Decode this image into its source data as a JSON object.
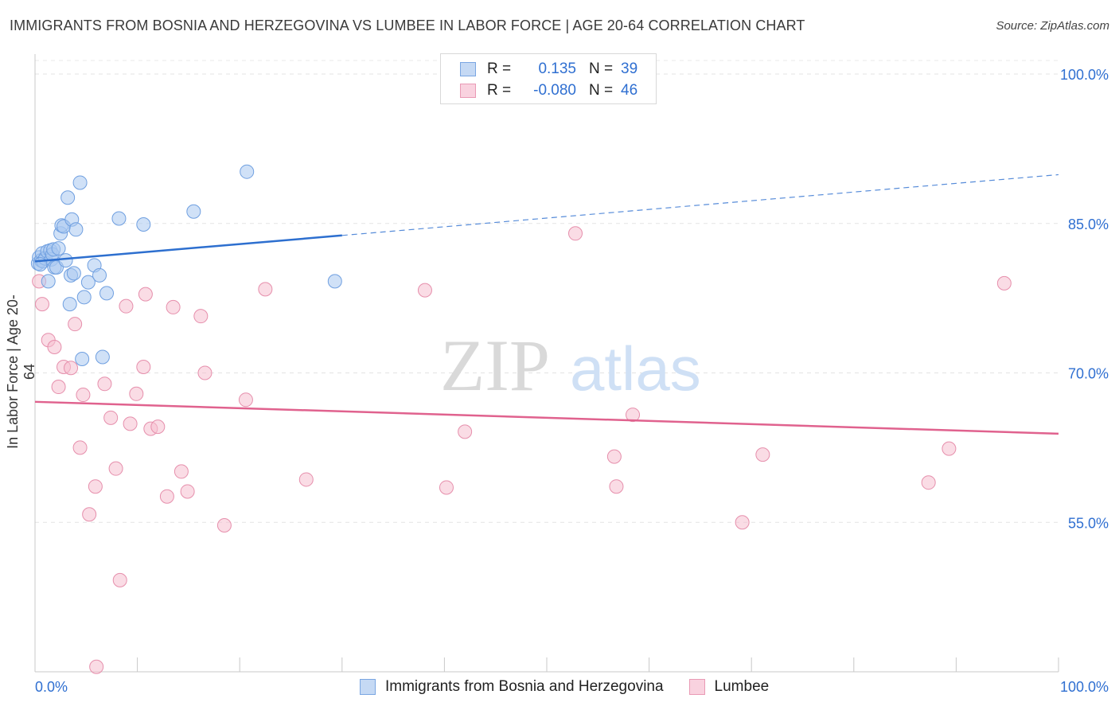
{
  "header": {
    "title": "IMMIGRANTS FROM BOSNIA AND HERZEGOVINA VS LUMBEE IN LABOR FORCE | AGE 20-64 CORRELATION CHART",
    "source": "Source: ZipAtlas.com"
  },
  "legend": {
    "series1": {
      "r_label": "R =",
      "r_value": "0.135",
      "n_label": "N =",
      "n_value": "39"
    },
    "series2": {
      "r_label": "R =",
      "r_value": "-0.080",
      "n_label": "N =",
      "n_value": "46"
    }
  },
  "bottom_legend": {
    "series1": "Immigrants from Bosnia and Herzegovina",
    "series2": "Lumbee"
  },
  "watermark": {
    "zip": "ZIP",
    "atlas": "atlas"
  },
  "colors": {
    "blue_fill": "#a9c8f0",
    "blue_stroke": "#6f9fe0",
    "blue_line": "#2d6fcf",
    "pink_fill": "#f6bfd0",
    "pink_stroke": "#e68fac",
    "pink_line": "#e0628e",
    "tick_text": "#2f6fd1"
  },
  "chart_data": {
    "type": "scatter",
    "title": "IMMIGRANTS FROM BOSNIA AND HERZEGOVINA VS LUMBEE IN LABOR FORCE | AGE 20-64 CORRELATION CHART",
    "xlabel": "",
    "ylabel": "In Labor Force | Age 20-64",
    "xlim": [
      0,
      100
    ],
    "ylim": [
      40,
      102
    ],
    "x_tick_labels": [
      "0.0%",
      "100.0%"
    ],
    "y_ticks": [
      55,
      70,
      85,
      100
    ],
    "y_tick_labels": [
      "55.0%",
      "70.0%",
      "85.0%",
      "100.0%"
    ],
    "grid": true,
    "legend_position": "top-center",
    "series": [
      {
        "name": "Immigrants from Bosnia and Herzegovina",
        "r": 0.135,
        "n": 39,
        "trend": {
          "x0": 0,
          "y0": 81.2,
          "x1": 30,
          "y1": 83.8,
          "dashed_to_x": 100,
          "dashed_to_y": 89.9
        },
        "points": [
          [
            0.3,
            81.0
          ],
          [
            0.4,
            81.6
          ],
          [
            0.6,
            81.3
          ],
          [
            0.7,
            82.0
          ],
          [
            0.8,
            81.2
          ],
          [
            1.0,
            81.5
          ],
          [
            1.2,
            82.2
          ],
          [
            1.3,
            79.2
          ],
          [
            1.5,
            82.3
          ],
          [
            1.6,
            81.4
          ],
          [
            1.7,
            81.9
          ],
          [
            1.8,
            82.4
          ],
          [
            1.9,
            80.6
          ],
          [
            2.1,
            80.6
          ],
          [
            2.3,
            82.5
          ],
          [
            2.5,
            84.0
          ],
          [
            2.6,
            84.8
          ],
          [
            2.8,
            84.7
          ],
          [
            3.0,
            81.3
          ],
          [
            3.2,
            87.6
          ],
          [
            3.4,
            76.9
          ],
          [
            3.5,
            79.8
          ],
          [
            3.6,
            85.4
          ],
          [
            3.8,
            80.0
          ],
          [
            4.0,
            84.4
          ],
          [
            4.4,
            89.1
          ],
          [
            4.6,
            71.4
          ],
          [
            4.8,
            77.6
          ],
          [
            5.2,
            79.1
          ],
          [
            5.8,
            80.8
          ],
          [
            6.3,
            79.8
          ],
          [
            6.6,
            71.6
          ],
          [
            7.0,
            78.0
          ],
          [
            8.2,
            85.5
          ],
          [
            10.6,
            84.9
          ],
          [
            15.5,
            86.2
          ],
          [
            20.7,
            90.2
          ],
          [
            29.3,
            79.2
          ],
          [
            0.5,
            80.9
          ]
        ]
      },
      {
        "name": "Lumbee",
        "r": -0.08,
        "n": 46,
        "trend": {
          "x0": 0,
          "y0": 67.1,
          "x1": 100,
          "y1": 63.9
        },
        "points": [
          [
            0.4,
            79.2
          ],
          [
            0.7,
            76.9
          ],
          [
            1.3,
            73.3
          ],
          [
            1.9,
            72.6
          ],
          [
            2.3,
            68.6
          ],
          [
            2.8,
            70.6
          ],
          [
            3.5,
            70.5
          ],
          [
            3.9,
            74.9
          ],
          [
            4.4,
            62.5
          ],
          [
            4.7,
            67.8
          ],
          [
            5.3,
            55.8
          ],
          [
            5.9,
            58.6
          ],
          [
            6.0,
            40.5
          ],
          [
            6.8,
            68.9
          ],
          [
            7.4,
            65.5
          ],
          [
            7.9,
            60.4
          ],
          [
            8.3,
            49.2
          ],
          [
            8.9,
            76.7
          ],
          [
            9.3,
            64.9
          ],
          [
            9.9,
            67.9
          ],
          [
            10.6,
            70.6
          ],
          [
            10.8,
            77.9
          ],
          [
            11.3,
            64.4
          ],
          [
            12.0,
            64.6
          ],
          [
            12.9,
            57.6
          ],
          [
            13.5,
            76.6
          ],
          [
            14.3,
            60.1
          ],
          [
            14.9,
            58.1
          ],
          [
            16.2,
            75.7
          ],
          [
            16.6,
            70.0
          ],
          [
            18.5,
            54.7
          ],
          [
            20.6,
            67.3
          ],
          [
            22.5,
            78.4
          ],
          [
            26.5,
            59.3
          ],
          [
            38.1,
            78.3
          ],
          [
            40.2,
            58.5
          ],
          [
            42.0,
            64.1
          ],
          [
            52.8,
            84.0
          ],
          [
            56.6,
            61.6
          ],
          [
            56.8,
            58.6
          ],
          [
            58.4,
            65.8
          ],
          [
            69.1,
            55.0
          ],
          [
            71.1,
            61.8
          ],
          [
            87.3,
            59.0
          ],
          [
            89.3,
            62.4
          ],
          [
            94.7,
            79.0
          ]
        ]
      }
    ]
  }
}
